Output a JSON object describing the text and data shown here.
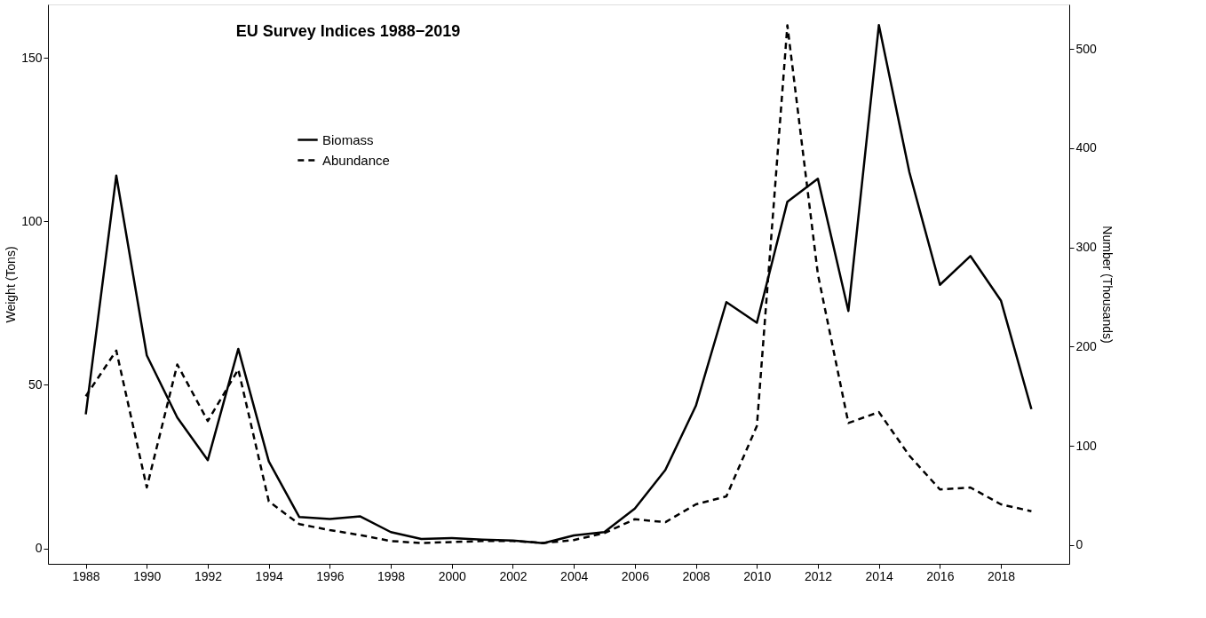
{
  "chart_data": {
    "type": "line",
    "title": "EU Survey Indices 1988−2019",
    "ylabel": "Weight (Tons)",
    "y2label": "Number (Thousands)",
    "x": [
      1988,
      1989,
      1990,
      1991,
      1992,
      1993,
      1994,
      1995,
      1996,
      1997,
      1998,
      1999,
      2000,
      2001,
      2002,
      2003,
      2004,
      2005,
      2006,
      2007,
      2008,
      2009,
      2010,
      2011,
      2012,
      2013,
      2014,
      2015,
      2016,
      2017,
      2018,
      2019
    ],
    "series": [
      {
        "name": "Biomass",
        "color": "#000000",
        "line_style": "solid",
        "values": [
          41,
          114,
          59,
          40,
          27,
          61,
          26.6,
          9.6,
          9,
          9.8,
          5,
          2.9,
          3.2,
          2.7,
          2.4,
          1.6,
          4,
          5,
          12.2,
          24,
          43.6,
          75.3,
          69,
          106,
          113,
          72.6,
          160,
          115,
          80.6,
          89.4,
          75.8,
          42.6
        ]
      },
      {
        "name": "Abundance",
        "color": "#000000",
        "line_style": "dashed",
        "axis": "y2",
        "values": [
          150,
          196,
          58,
          182,
          125,
          177,
          44,
          21,
          15,
          10,
          4,
          2,
          3,
          4,
          4,
          2,
          5,
          12,
          26,
          23,
          41,
          49,
          120,
          524,
          273,
          123,
          134,
          90,
          56,
          58,
          41,
          34
        ]
      }
    ],
    "xlim": [
      1986.76,
      2020.24
    ],
    "xticks": [
      1988,
      1990,
      1992,
      1994,
      1996,
      1998,
      2000,
      2002,
      2004,
      2006,
      2008,
      2010,
      2012,
      2014,
      2016,
      2018
    ],
    "ylim": [
      -4.7,
      166.3
    ],
    "yticks": [
      0,
      50,
      100,
      150
    ],
    "y2lim": [
      -19,
      545
    ],
    "y2ticks": [
      0,
      100,
      200,
      300,
      400,
      500
    ],
    "legend": "top left",
    "grid": false
  }
}
